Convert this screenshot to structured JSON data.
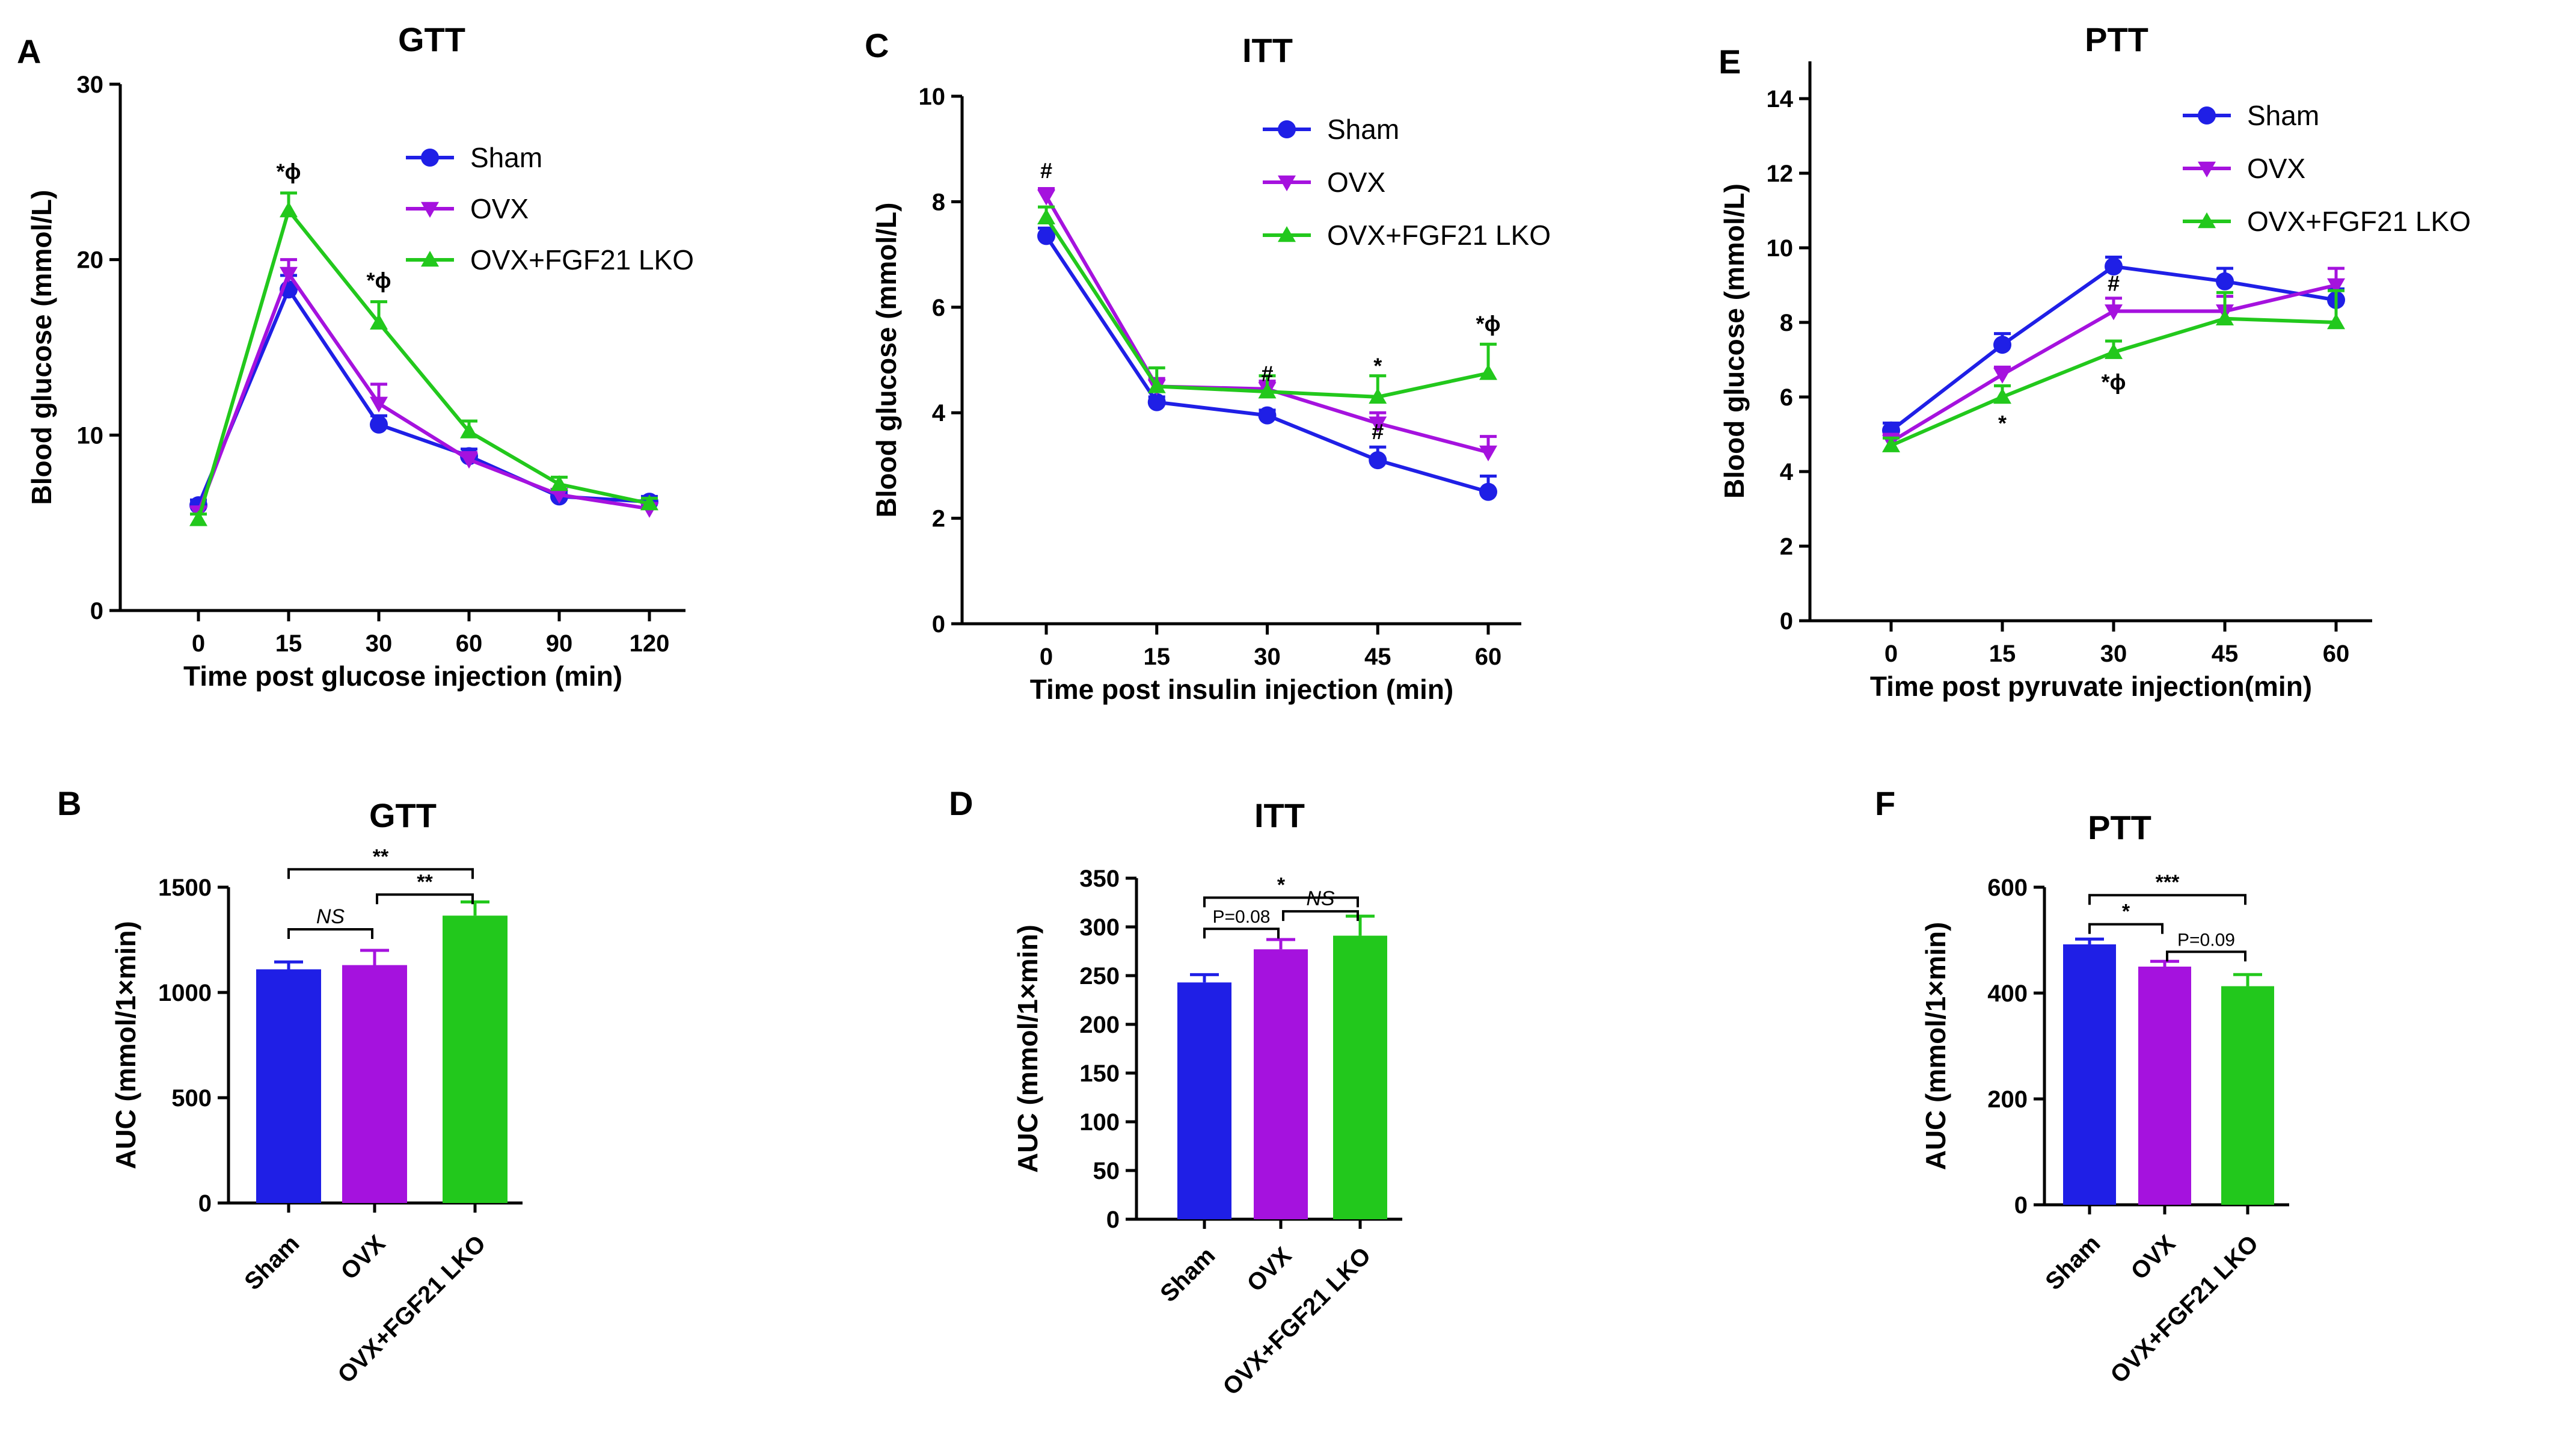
{
  "colors": {
    "sham": "#1f1fe6",
    "ovx": "#a512de",
    "lko": "#22c81c",
    "axis": "#000000"
  },
  "panels": {
    "A": {
      "letter": "A",
      "title": "GTT"
    },
    "B": {
      "letter": "B",
      "title": "GTT"
    },
    "C": {
      "letter": "C",
      "title": "ITT"
    },
    "D": {
      "letter": "D",
      "title": "ITT"
    },
    "E": {
      "letter": "E",
      "title": "PTT"
    },
    "F": {
      "letter": "F",
      "title": "PTT"
    }
  },
  "chart_data": [
    {
      "id": "A",
      "type": "line",
      "title": "GTT",
      "xlabel": "Time post glucose injection (min)",
      "ylabel": "Blood glucose (mmol/L)",
      "categories": [
        "0",
        "15",
        "30",
        "60",
        "90",
        "120"
      ],
      "ylim": [
        0,
        30
      ],
      "yticks": [
        "0",
        "10",
        "20",
        "30"
      ],
      "legend": "top-right",
      "series": [
        {
          "name": "Sham",
          "marker": "circle",
          "color": "#1f1fe6",
          "values": [
            6.0,
            18.3,
            10.6,
            8.8,
            6.5,
            6.2
          ],
          "err": [
            0.3,
            0.8,
            0.5,
            0.4,
            0.3,
            0.3
          ]
        },
        {
          "name": "OVX",
          "marker": "triangle-down",
          "color": "#a512de",
          "values": [
            5.6,
            19.2,
            11.8,
            8.6,
            6.6,
            5.8
          ],
          "err": [
            0.3,
            0.8,
            1.1,
            0.4,
            0.3,
            0.3
          ]
        },
        {
          "name": "OVX+FGF21 LKO",
          "marker": "triangle-up",
          "color": "#22c81c",
          "values": [
            5.2,
            22.8,
            16.4,
            10.2,
            7.2,
            6.1
          ],
          "err": [
            0.3,
            1.0,
            1.2,
            0.6,
            0.4,
            0.3
          ]
        }
      ],
      "annotations": [
        {
          "text": "*ϕ",
          "cat": 1,
          "y": 24.6
        },
        {
          "text": "*ϕ",
          "cat": 2,
          "y": 18.4
        }
      ]
    },
    {
      "id": "C",
      "type": "line",
      "title": "ITT",
      "xlabel": "Time post insulin injection (min)",
      "ylabel": "Blood glucose (mmol/L)",
      "categories": [
        "0",
        "15",
        "30",
        "45",
        "60"
      ],
      "ylim": [
        0,
        10
      ],
      "yticks": [
        "0",
        "2",
        "4",
        "6",
        "8",
        "10"
      ],
      "legend": "top-right",
      "series": [
        {
          "name": "Sham",
          "marker": "circle",
          "color": "#1f1fe6",
          "values": [
            7.35,
            4.2,
            3.95,
            3.1,
            2.5
          ],
          "err": [
            0.15,
            0.1,
            0.1,
            0.25,
            0.3
          ]
        },
        {
          "name": "OVX",
          "marker": "triangle-down",
          "color": "#a512de",
          "values": [
            8.1,
            4.5,
            4.45,
            3.8,
            3.25
          ],
          "err": [
            0.15,
            0.15,
            0.15,
            0.2,
            0.3
          ]
        },
        {
          "name": "OVX+FGF21 LKO",
          "marker": "triangle-up",
          "color": "#22c81c",
          "values": [
            7.7,
            4.5,
            4.4,
            4.3,
            4.75
          ],
          "err": [
            0.2,
            0.35,
            0.3,
            0.4,
            0.55
          ]
        }
      ],
      "annotations": [
        {
          "text": "#",
          "cat": 0,
          "y": 8.45
        },
        {
          "text": "#",
          "cat": 2,
          "y": 4.6
        },
        {
          "text": "#",
          "cat": 3,
          "y": 3.5
        },
        {
          "text": "*",
          "cat": 3,
          "y": 4.75
        },
        {
          "text": "*ϕ",
          "cat": 4,
          "y": 5.55
        }
      ]
    },
    {
      "id": "E",
      "type": "line",
      "title": "PTT",
      "xlabel": "Time post pyruvate injection(min)",
      "ylabel": "Blood glucose (mmol/L)",
      "categories": [
        "0",
        "15",
        "30",
        "45",
        "60"
      ],
      "ylim": [
        0,
        15
      ],
      "yticks": [
        "0",
        "2",
        "4",
        "6",
        "8",
        "10",
        "12",
        "14"
      ],
      "legend": "top-right",
      "series": [
        {
          "name": "Sham",
          "marker": "circle",
          "color": "#1f1fe6",
          "values": [
            5.1,
            7.4,
            9.5,
            9.1,
            8.6
          ],
          "err": [
            0.2,
            0.3,
            0.25,
            0.35,
            0.3
          ]
        },
        {
          "name": "OVX",
          "marker": "triangle-down",
          "color": "#a512de",
          "values": [
            4.8,
            6.6,
            8.3,
            8.3,
            9.0
          ],
          "err": [
            0.2,
            0.2,
            0.35,
            0.4,
            0.45
          ]
        },
        {
          "name": "OVX+FGF21 LKO",
          "marker": "triangle-up",
          "color": "#22c81c",
          "values": [
            4.7,
            6.0,
            7.2,
            8.1,
            8.0
          ],
          "err": [
            0.2,
            0.3,
            0.3,
            0.7,
            0.85
          ]
        }
      ],
      "annotations": [
        {
          "text": "*",
          "cat": 1,
          "y": 5.1
        },
        {
          "text": "#",
          "cat": 2,
          "y": 8.85
        },
        {
          "text": "*ϕ",
          "cat": 2,
          "y": 6.2
        }
      ]
    },
    {
      "id": "B",
      "type": "bar",
      "title": "GTT",
      "ylabel": "AUC (mmol/1×min)",
      "categories": [
        "Sham",
        "OVX",
        "OVX+FGF21 LKO"
      ],
      "colors": [
        "#1f1fe6",
        "#a512de",
        "#22c81c"
      ],
      "values": [
        1110,
        1130,
        1365
      ],
      "err": [
        35,
        70,
        65
      ],
      "ylim": [
        0,
        1500
      ],
      "yticks": [
        "0",
        "500",
        "1000",
        "1500"
      ],
      "brackets": [
        {
          "from": 0,
          "to": 2,
          "y": 1585,
          "text": "**",
          "italic": false
        },
        {
          "from": 1,
          "to": 2,
          "y": 1465,
          "text": "**",
          "italic": false
        },
        {
          "from": 0,
          "to": 1,
          "y": 1300,
          "text": "NS",
          "italic": true
        }
      ]
    },
    {
      "id": "D",
      "type": "bar",
      "title": "ITT",
      "ylabel": "AUC (mmol/1×min)",
      "categories": [
        "Sham",
        "OVX",
        "OVX+FGF21 LKO"
      ],
      "colors": [
        "#1f1fe6",
        "#a512de",
        "#22c81c"
      ],
      "values": [
        243,
        277,
        291
      ],
      "err": [
        8,
        10,
        20
      ],
      "ylim": [
        0,
        350
      ],
      "yticks": [
        "0",
        "50",
        "100",
        "150",
        "200",
        "250",
        "300",
        "350"
      ],
      "brackets": [
        {
          "from": 0,
          "to": 2,
          "y": 330,
          "text": "*",
          "italic": false
        },
        {
          "from": 1,
          "to": 2,
          "y": 316,
          "text": "NS",
          "italic": true
        },
        {
          "from": 0,
          "to": 1,
          "y": 298,
          "text": "P=0.08",
          "italic": false
        }
      ]
    },
    {
      "id": "F",
      "type": "bar",
      "title": "PTT",
      "ylabel": "AUC (mmol/1×min)",
      "categories": [
        "Sham",
        "OVX",
        "OVX+FGF21 LKO"
      ],
      "colors": [
        "#1f1fe6",
        "#a512de",
        "#22c81c"
      ],
      "values": [
        492,
        450,
        413
      ],
      "err": [
        10,
        10,
        22
      ],
      "ylim": [
        0,
        600
      ],
      "yticks": [
        "0",
        "200",
        "400",
        "600"
      ],
      "brackets": [
        {
          "from": 0,
          "to": 2,
          "y": 585,
          "text": "***",
          "italic": false
        },
        {
          "from": 0,
          "to": 1,
          "y": 530,
          "text": "*",
          "italic": false
        },
        {
          "from": 1,
          "to": 2,
          "y": 478,
          "text": "P=0.09",
          "italic": false
        }
      ]
    }
  ]
}
